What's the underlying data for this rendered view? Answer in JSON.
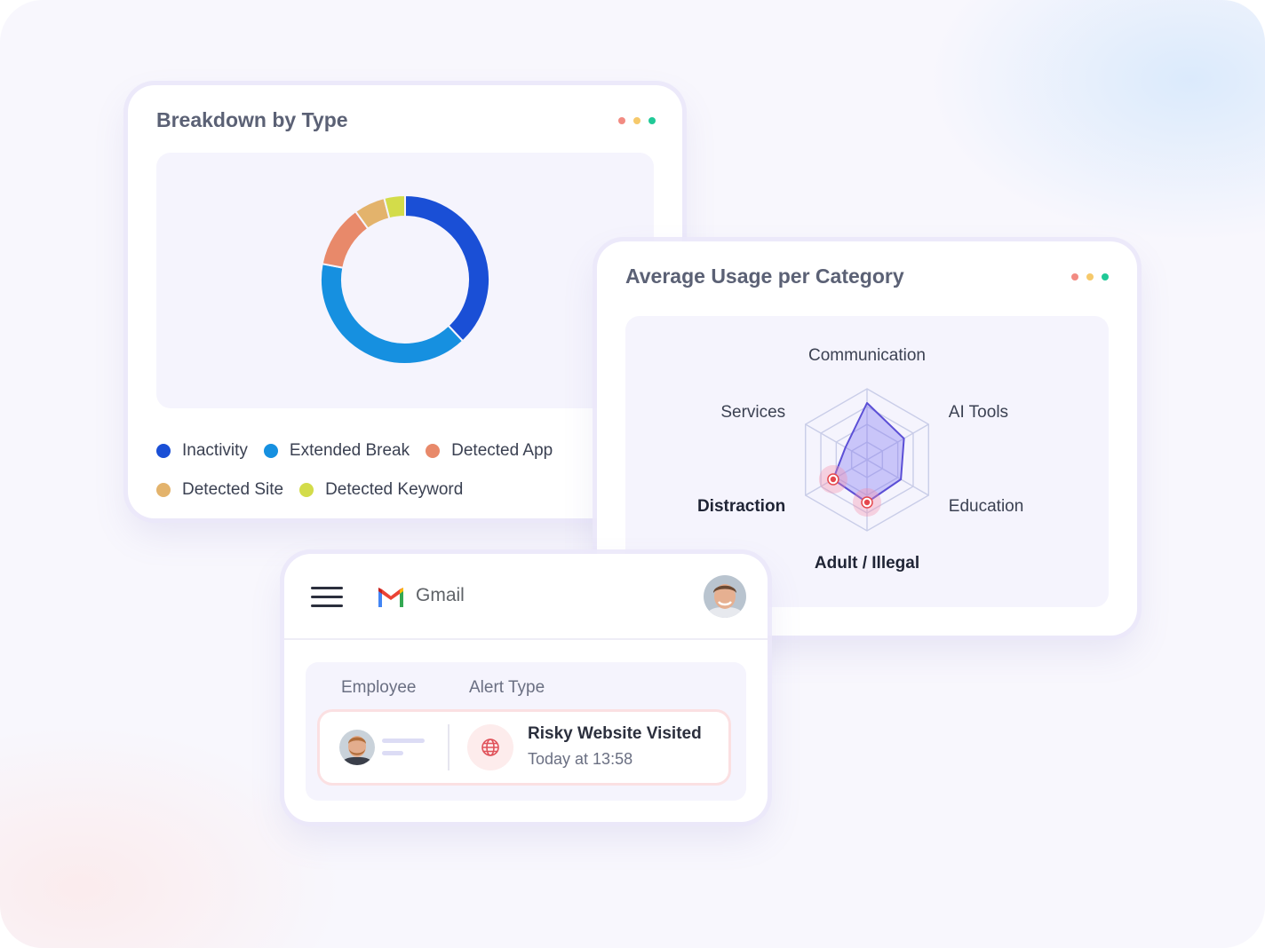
{
  "breakdown_card": {
    "title": "Breakdown by Type",
    "window_dots": [
      "#f28b82",
      "#f6c96b",
      "#20c997"
    ]
  },
  "chart_data": [
    {
      "type": "pie",
      "title": "Breakdown by Type",
      "donut": true,
      "legend_position": "bottom",
      "categories": [
        "Inactivity",
        "Extended Break",
        "Detected App",
        "Detected Site",
        "Detected Keyword"
      ],
      "values": [
        38,
        40,
        12,
        6,
        4
      ],
      "colors": [
        "#1a4fd6",
        "#1690e0",
        "#e8896a",
        "#e3b36c",
        "#d3dc4a"
      ]
    },
    {
      "type": "radar",
      "title": "Average Usage per Category",
      "categories": [
        "Communication",
        "AI Tools",
        "Education",
        "Adult / Illegal",
        "Distraction",
        "Services"
      ],
      "highlighted_categories": [
        "Adult / Illegal",
        "Distraction"
      ],
      "values": [
        0.8,
        0.6,
        0.55,
        0.6,
        0.55,
        0.35
      ],
      "max": 1,
      "rings": 4,
      "color": "#5b4fd6"
    }
  ],
  "usage_card": {
    "title": "Average Usage per Category",
    "window_dots": [
      "#f28b82",
      "#f6c96b",
      "#20c997"
    ]
  },
  "gmail_card": {
    "app_name": "Gmail",
    "menu_icon": "hamburger-icon",
    "logo_icon": "gmail-logo-icon",
    "columns": [
      "Employee",
      "Alert Type"
    ],
    "alert": {
      "icon": "globe-icon",
      "title": "Risky Website Visited",
      "time": "Today at 13:58"
    }
  }
}
